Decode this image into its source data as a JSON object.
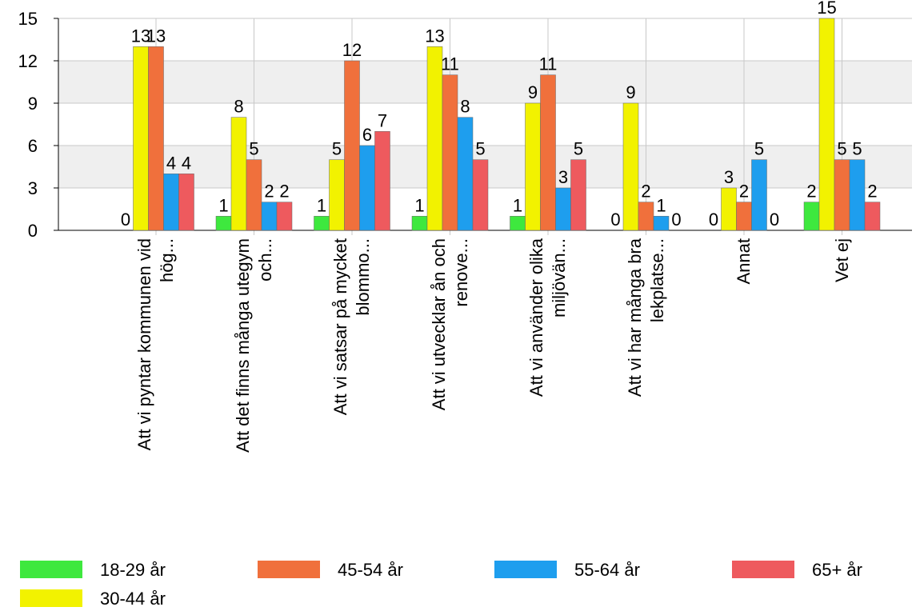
{
  "chart_data": {
    "type": "bar",
    "categories": [
      "Att vi pyntar kommunen vid hög...",
      "Att det finns många utegym och...",
      "Att vi satsar på mycket blommo...",
      "Att vi utvecklar ån och renove...",
      "Att vi använder olika miljövän...",
      "Att vi har många bra lekplatse...",
      "Annat",
      "Vet ej"
    ],
    "series": [
      {
        "name": "18-29 år",
        "color": "#3ee83e",
        "values": [
          0,
          1,
          1,
          1,
          1,
          0,
          0,
          2
        ]
      },
      {
        "name": "30-44 år",
        "color": "#f2f200",
        "values": [
          13,
          8,
          5,
          13,
          9,
          9,
          3,
          15
        ]
      },
      {
        "name": "45-54 år",
        "color": "#f0703c",
        "values": [
          13,
          5,
          12,
          11,
          11,
          2,
          2,
          5
        ]
      },
      {
        "name": "55-64 år",
        "color": "#1e9eee",
        "values": [
          4,
          2,
          6,
          8,
          3,
          1,
          5,
          5
        ]
      },
      {
        "name": "65+ år",
        "color": "#ee5a5e",
        "values": [
          4,
          2,
          7,
          5,
          5,
          0,
          0,
          2
        ]
      }
    ],
    "ylim": [
      0,
      15
    ],
    "yticks": [
      0,
      3,
      6,
      9,
      12,
      15
    ],
    "grid": true,
    "legend": "bottom"
  }
}
